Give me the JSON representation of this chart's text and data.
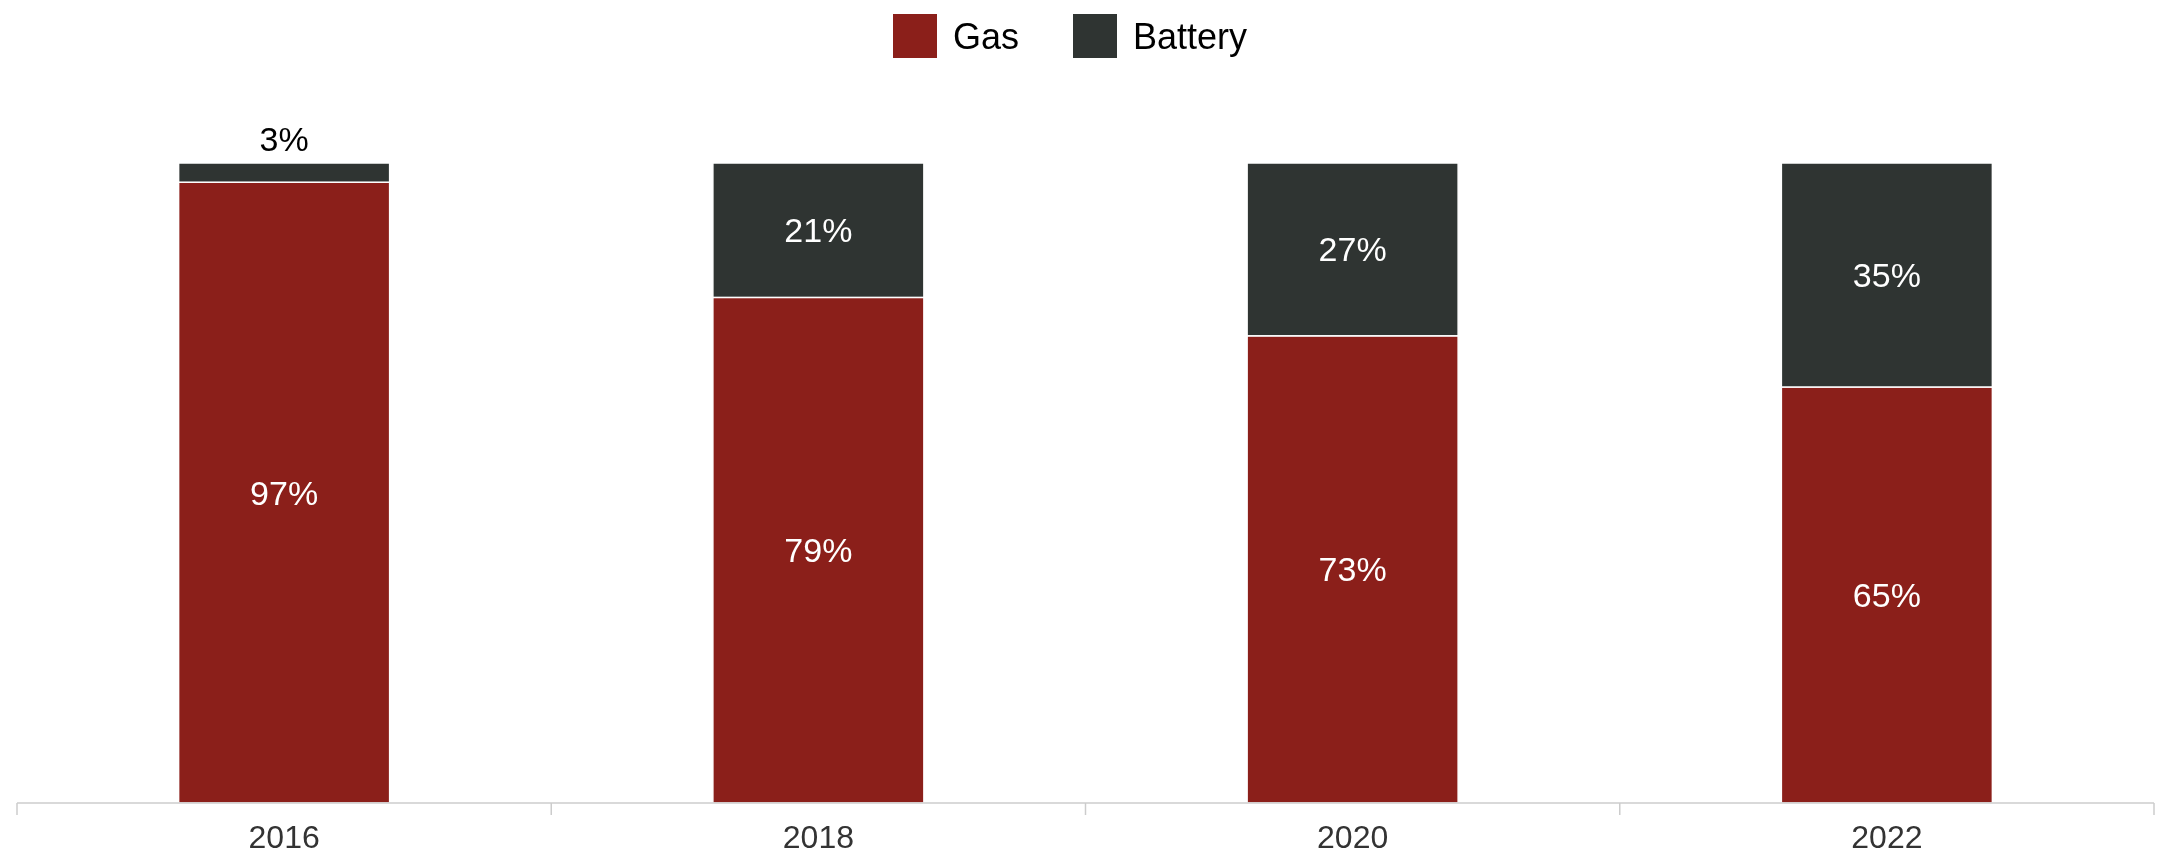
{
  "chart_data": {
    "type": "bar",
    "stacked": true,
    "categories": [
      "2016",
      "2018",
      "2020",
      "2022"
    ],
    "ylim": [
      0,
      100
    ],
    "tick_labels": "x",
    "legend": "top",
    "series": [
      {
        "name": "Gas",
        "color": "#8b1f1a",
        "values": [
          97,
          79,
          73,
          65
        ],
        "value_labels": [
          "97%",
          "79%",
          "73%",
          "65%"
        ]
      },
      {
        "name": "Battery",
        "color": "#2f3432",
        "values": [
          3,
          21,
          27,
          35
        ],
        "value_labels": [
          "3%",
          "21%",
          "27%",
          "35%"
        ]
      }
    ]
  }
}
